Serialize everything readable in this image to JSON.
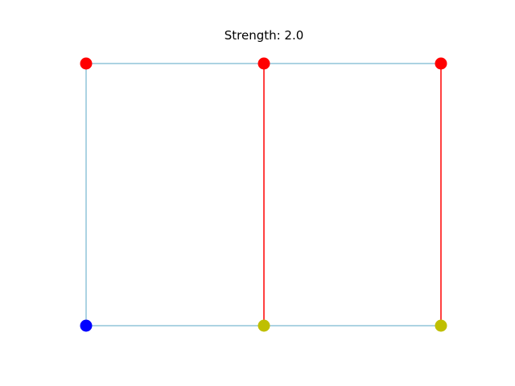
{
  "title": "Strength: 2.0",
  "colors": {
    "background": "#ffffff",
    "blue_edge": "#5aa7c4",
    "red_edge": "#ff0000",
    "node_red": "#ff0000",
    "node_blue": "#0000ff",
    "node_yellow": "#bfbf00"
  },
  "nodes": [
    {
      "id": "top-left",
      "color": "node_red",
      "col": 0,
      "row": 0
    },
    {
      "id": "top-middle",
      "color": "node_red",
      "col": 1,
      "row": 0
    },
    {
      "id": "top-right",
      "color": "node_red",
      "col": 2,
      "row": 0
    },
    {
      "id": "bottom-left",
      "color": "node_blue",
      "col": 0,
      "row": 1
    },
    {
      "id": "bottom-middle",
      "color": "node_yellow",
      "col": 1,
      "row": 1
    },
    {
      "id": "bottom-right",
      "color": "node_yellow",
      "col": 2,
      "row": 1
    }
  ],
  "edges": [
    {
      "from": "top-left",
      "to": "top-middle",
      "color": "blue_edge"
    },
    {
      "from": "top-middle",
      "to": "top-right",
      "color": "blue_edge"
    },
    {
      "from": "bottom-left",
      "to": "bottom-middle",
      "color": "blue_edge"
    },
    {
      "from": "bottom-middle",
      "to": "bottom-right",
      "color": "blue_edge"
    },
    {
      "from": "top-left",
      "to": "bottom-left",
      "color": "blue_edge"
    },
    {
      "from": "top-middle",
      "to": "bottom-middle",
      "color": "red_edge"
    },
    {
      "from": "top-right",
      "to": "bottom-right",
      "color": "red_edge"
    }
  ]
}
